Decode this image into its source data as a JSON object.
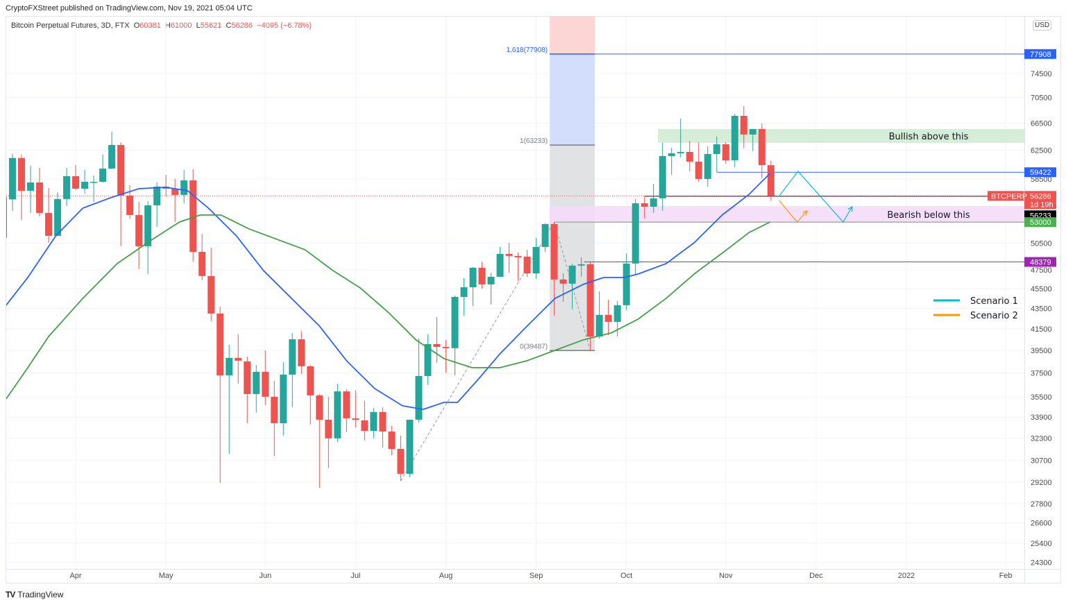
{
  "header": {
    "attribution": "CryptoFXStreet published on TradingView.com, Nov 19, 2021 05:04 UTC",
    "symbol": "Bitcoin Perpetual Futures, 3D, FTX",
    "o_label": "O",
    "o": "60381",
    "h_label": "H",
    "h": "61000",
    "l_label": "L",
    "l": "55621",
    "c_label": "C",
    "c": "56286",
    "change": "−4095 (−6.78%)"
  },
  "axis": {
    "currency": "USD"
  },
  "footer": {
    "logo": "TV",
    "brand": "TradingView"
  },
  "chart_data": {
    "type": "candlestick",
    "title": "Bitcoin Perpetual Futures, 3D, FTX",
    "yscale": "log",
    "ylim": [
      23940,
      84870
    ],
    "xlim_bars": [
      0.31,
      113.07
    ],
    "grid": true,
    "colors": {
      "up": "#26a69a",
      "down": "#ef5350",
      "ma_fast": "#2962ff",
      "ma_slow": "#43a047"
    },
    "candles": [
      [
        51120,
        56140,
        51120,
        56140
      ],
      [
        55830,
        61990,
        54380,
        61390
      ],
      [
        61390,
        61890,
        53270,
        56950
      ],
      [
        56950,
        60300,
        54130,
        58040
      ],
      [
        58040,
        60020,
        53700,
        54130
      ],
      [
        54130,
        57310,
        50550,
        51360
      ],
      [
        51360,
        56770,
        51360,
        55880
      ],
      [
        55880,
        60020,
        55000,
        58880
      ],
      [
        58880,
        60400,
        57030,
        57220
      ],
      [
        57220,
        59730,
        56590,
        58130
      ],
      [
        58000,
        58970,
        55520,
        58130
      ],
      [
        58130,
        61890,
        58040,
        59920
      ],
      [
        59920,
        65190,
        59920,
        63250
      ],
      [
        63250,
        63650,
        50150,
        56320
      ],
      [
        56320,
        57670,
        53440,
        53870
      ],
      [
        53870,
        55520,
        47580,
        50150
      ],
      [
        50150,
        55610,
        47060,
        55080
      ],
      [
        55080,
        58040,
        52430,
        57490
      ],
      [
        57490,
        59070,
        56230,
        57220
      ],
      [
        57220,
        58500,
        53010,
        56410
      ],
      [
        56410,
        59730,
        55340,
        58320
      ],
      [
        58320,
        59830,
        48430,
        49510
      ],
      [
        49510,
        51600,
        46390,
        46840
      ],
      [
        46840,
        49990,
        42240,
        42980
      ],
      [
        42980,
        43670,
        29160,
        37310
      ],
      [
        37310,
        40010,
        31170,
        38830
      ],
      [
        38830,
        40980,
        36610,
        38580
      ],
      [
        38520,
        38950,
        33430,
        35740
      ],
      [
        35740,
        38210,
        34240,
        37610
      ],
      [
        37610,
        39510,
        34850,
        35520
      ],
      [
        35520,
        36840,
        31020,
        33430
      ],
      [
        33430,
        38460,
        32490,
        37370
      ],
      [
        37370,
        41110,
        34680,
        40520
      ],
      [
        40520,
        41310,
        37430,
        38090
      ],
      [
        38090,
        38210,
        33320,
        35630
      ],
      [
        35630,
        35740,
        28830,
        33700
      ],
      [
        33700,
        35520,
        30150,
        32290
      ],
      [
        32290,
        36610,
        32030,
        35960
      ],
      [
        35960,
        36150,
        32750,
        33810
      ],
      [
        33810,
        36030,
        33110,
        33700
      ],
      [
        33650,
        35180,
        32130,
        32850
      ],
      [
        32850,
        34620,
        32290,
        34300
      ],
      [
        34300,
        34680,
        31620,
        32800
      ],
      [
        32800,
        33220,
        31070,
        31520
      ],
      [
        31520,
        32490,
        29290,
        29770
      ],
      [
        29770,
        33700,
        29530,
        33700
      ],
      [
        33700,
        40590,
        33480,
        37250
      ],
      [
        37250,
        40980,
        36490,
        40080
      ],
      [
        40080,
        42640,
        38400,
        39820
      ],
      [
        39820,
        40460,
        37550,
        39700
      ],
      [
        39700,
        44790,
        37310,
        44650
      ],
      [
        44650,
        46620,
        42780,
        45650
      ],
      [
        45650,
        47810,
        43740,
        47740
      ],
      [
        47740,
        48350,
        45520,
        45950
      ],
      [
        45950,
        47200,
        43880,
        46760
      ],
      [
        46760,
        50070,
        46760,
        49280
      ],
      [
        49280,
        50550,
        47200,
        49050
      ],
      [
        49050,
        49430,
        46320,
        48890
      ],
      [
        48970,
        49750,
        46760,
        47120
      ],
      [
        47120,
        51110,
        46540,
        50070
      ],
      [
        50070,
        52840,
        49510,
        52760
      ],
      [
        52760,
        53010,
        42780,
        46470
      ],
      [
        46470,
        47120,
        44160,
        46030
      ],
      [
        46030,
        48200,
        43400,
        47970
      ],
      [
        47970,
        48890,
        46760,
        48120
      ],
      [
        48120,
        48350,
        39490,
        40780
      ],
      [
        40780,
        45230,
        40590,
        42850
      ],
      [
        42850,
        44370,
        40910,
        42170
      ],
      [
        42170,
        44230,
        40780,
        43810
      ],
      [
        43810,
        49360,
        43330,
        48200
      ],
      [
        48200,
        55880,
        46910,
        55340
      ],
      [
        55340,
        56230,
        53440,
        54900
      ],
      [
        54900,
        57850,
        54130,
        55970
      ],
      [
        55970,
        63550,
        54380,
        61660
      ],
      [
        61660,
        62850,
        59070,
        62060
      ],
      [
        62060,
        67180,
        61460,
        62250
      ],
      [
        62250,
        63860,
        59540,
        60880
      ],
      [
        60880,
        63650,
        58130,
        58510
      ],
      [
        58510,
        63050,
        57490,
        61950
      ],
      [
        61950,
        64470,
        59450,
        63350
      ],
      [
        63350,
        63650,
        60590,
        61070
      ],
      [
        61070,
        67930,
        60110,
        67610
      ],
      [
        67610,
        69130,
        62750,
        64780
      ],
      [
        64780,
        65610,
        62350,
        65610
      ],
      [
        65610,
        66440,
        58600,
        60400
      ],
      [
        60381,
        61000,
        55621,
        56286
      ]
    ],
    "ma_fast": [
      [
        0.3,
        43810
      ],
      [
        2.7,
        46690
      ],
      [
        5.8,
        51360
      ],
      [
        8.8,
        54730
      ],
      [
        11.9,
        56060
      ],
      [
        15,
        57220
      ],
      [
        18,
        57400
      ],
      [
        20.4,
        56950
      ],
      [
        22.7,
        54730
      ],
      [
        25.8,
        51360
      ],
      [
        28.8,
        47430
      ],
      [
        31.9,
        44510
      ],
      [
        35,
        41770
      ],
      [
        38,
        38580
      ],
      [
        41.1,
        36200
      ],
      [
        44.2,
        34790
      ],
      [
        46.5,
        34510
      ],
      [
        48.8,
        35070
      ],
      [
        50.3,
        35070
      ],
      [
        52.7,
        37070
      ],
      [
        55,
        39200
      ],
      [
        58,
        41770
      ],
      [
        61.1,
        44510
      ],
      [
        64.2,
        45950
      ],
      [
        66.5,
        46690
      ],
      [
        68.8,
        46690
      ],
      [
        70.3,
        47060
      ],
      [
        73.4,
        48200
      ],
      [
        76.5,
        50550
      ],
      [
        79.6,
        53870
      ],
      [
        82.6,
        56500
      ],
      [
        84.9,
        59260
      ]
    ],
    "ma_slow": [
      [
        0.3,
        35350
      ],
      [
        2.7,
        37970
      ],
      [
        5,
        40780
      ],
      [
        8.8,
        44510
      ],
      [
        12.6,
        48200
      ],
      [
        16.5,
        50950
      ],
      [
        19.5,
        53010
      ],
      [
        21.8,
        53870
      ],
      [
        24.1,
        53870
      ],
      [
        27.2,
        52180
      ],
      [
        30.3,
        50950
      ],
      [
        33.4,
        49750
      ],
      [
        36.5,
        47430
      ],
      [
        39.5,
        45590
      ],
      [
        42.6,
        43120
      ],
      [
        45.7,
        40460
      ],
      [
        48.8,
        38760
      ],
      [
        51.9,
        37970
      ],
      [
        55,
        37970
      ],
      [
        58,
        38580
      ],
      [
        61.1,
        39510
      ],
      [
        64.2,
        40460
      ],
      [
        67.3,
        41110
      ],
      [
        70.3,
        42440
      ],
      [
        73.4,
        44510
      ],
      [
        76.5,
        47060
      ],
      [
        79.6,
        49360
      ],
      [
        82.6,
        51770
      ],
      [
        84.9,
        53010
      ]
    ],
    "y_ticks": [
      "74500",
      "70500",
      "66500",
      "62500",
      "58500",
      "50500",
      "47500",
      "45500",
      "43500",
      "41500",
      "39500",
      "37500",
      "35500",
      "33900",
      "32300",
      "30700",
      "29200",
      "27800",
      "26600",
      "25400",
      "24300"
    ],
    "x_ticks": [
      {
        "label": "Apr",
        "bar": 8
      },
      {
        "label": "May",
        "bar": 18
      },
      {
        "label": "Jun",
        "bar": 29
      },
      {
        "label": "Jul",
        "bar": 39
      },
      {
        "label": "Aug",
        "bar": 49
      },
      {
        "label": "Sep",
        "bar": 59
      },
      {
        "label": "Oct",
        "bar": 69
      },
      {
        "label": "Nov",
        "bar": 80
      },
      {
        "label": "Dec",
        "bar": 90
      },
      {
        "label": "2022",
        "bar": 100
      },
      {
        "label": "Feb",
        "bar": 111
      }
    ],
    "fib": {
      "start_bar": 61,
      "end_bar": 65,
      "levels": [
        {
          "label": "1.618(77908)",
          "value": 77908,
          "color": "#2962ff"
        },
        {
          "label": "1(63233)",
          "value": 63233,
          "color": "#787b86"
        },
        {
          "label": "0(39487)",
          "value": 39487,
          "color": "#787b86"
        }
      ],
      "fills": {
        "above": "#fcd5d5",
        "upper": "#d2defc",
        "lower": "#e1e2e4"
      }
    },
    "trend_path": [
      [
        44,
        29290
      ],
      [
        61,
        53010
      ],
      [
        65,
        39487
      ]
    ],
    "zones": [
      {
        "label": "Bullish above this",
        "from_bar": 73,
        "top": 65600,
        "bottom": 63550,
        "color": "#d2ecd3"
      },
      {
        "label": "Bearish below this",
        "from_bar": 61,
        "top": 55000,
        "bottom": 52930,
        "color": "#f5dcf8"
      }
    ],
    "hlines": [
      {
        "value": 77908,
        "from_bar": 65,
        "color": "#2962ff"
      },
      {
        "value": 59422,
        "from_bar": 79,
        "color": "#2962ff"
      },
      {
        "value": 56233,
        "from_bar": 71,
        "color": "#131722"
      },
      {
        "value": 53000,
        "from_bar": 61,
        "color": "#7a9a7a"
      },
      {
        "value": 48379,
        "from_bar": 64.3,
        "color": "#9c27b0"
      }
    ],
    "current_price": 56286,
    "price_badges": [
      {
        "text": "77908",
        "value": 77908,
        "color": "#2962ff"
      },
      {
        "text": "59422",
        "value": 59422,
        "color": "#2962ff"
      },
      {
        "text": "56286",
        "value": 56286,
        "color": "#ef5350",
        "sub": "1d 19h",
        "symbol": "BTCPERP"
      },
      {
        "text": "56233",
        "value": 56233,
        "color": "#000000",
        "offset": 1
      },
      {
        "text": "53000",
        "value": 53000,
        "color": "#4caf50"
      },
      {
        "text": "48379",
        "value": 48379,
        "color": "#9c27b0"
      }
    ],
    "scenarios": [
      {
        "name": "Scenario 1",
        "color": "#00bcd4",
        "path": [
          [
            85.9,
            56230
          ],
          [
            88.0,
            59550
          ],
          [
            93.0,
            53010
          ],
          [
            94.0,
            54900
          ]
        ]
      },
      {
        "name": "Scenario 2",
        "color": "#ff9800",
        "path": [
          [
            85.9,
            55700
          ],
          [
            87.9,
            53010
          ],
          [
            89.0,
            54380
          ]
        ]
      }
    ],
    "legend_position": "right-middle"
  }
}
